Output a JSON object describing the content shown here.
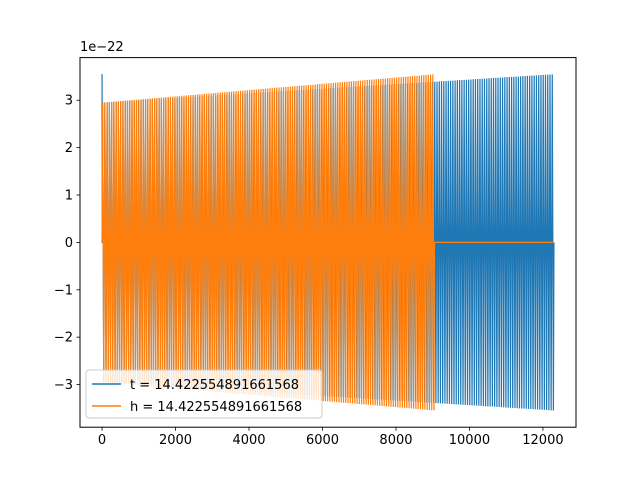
{
  "chart_data": {
    "type": "line",
    "title": "",
    "xlabel": "",
    "ylabel": "",
    "y_offset_label": "1e−22",
    "xlim": [
      -600,
      12900
    ],
    "ylim": [
      -3.9,
      3.9
    ],
    "x_ticks": [
      0,
      2000,
      4000,
      6000,
      8000,
      10000,
      12000
    ],
    "x_tick_labels": [
      "0",
      "2000",
      "4000",
      "6000",
      "8000",
      "10000",
      "12000"
    ],
    "y_ticks": [
      -3,
      -2,
      -1,
      0,
      1,
      2,
      3
    ],
    "y_tick_labels": [
      "−3",
      "−2",
      "−1",
      "0",
      "1",
      "2",
      "3"
    ],
    "grid": false,
    "legend_position": "lower-left",
    "series": [
      {
        "name": "t = 14.422554891661568",
        "color": "#1f77b4",
        "description_values": {
          "x_start": 0,
          "x_end": 12300,
          "initial_peak": 3.55,
          "amplitude_start": 2.95,
          "amplitude_end": 3.55
        }
      },
      {
        "name": "h = 14.422554891661568",
        "color": "#ff7f0e",
        "description_values": {
          "x_start": 0,
          "x_end_oscillation": 9050,
          "x_end": 12300,
          "amplitude_start": 2.95,
          "amplitude_end": 3.55,
          "value_after_oscillation": 0
        }
      }
    ]
  },
  "legend": {
    "entries": [
      {
        "label": "t = 14.422554891661568",
        "color": "#1f77b4"
      },
      {
        "label": "h = 14.422554891661568",
        "color": "#ff7f0e"
      }
    ]
  }
}
